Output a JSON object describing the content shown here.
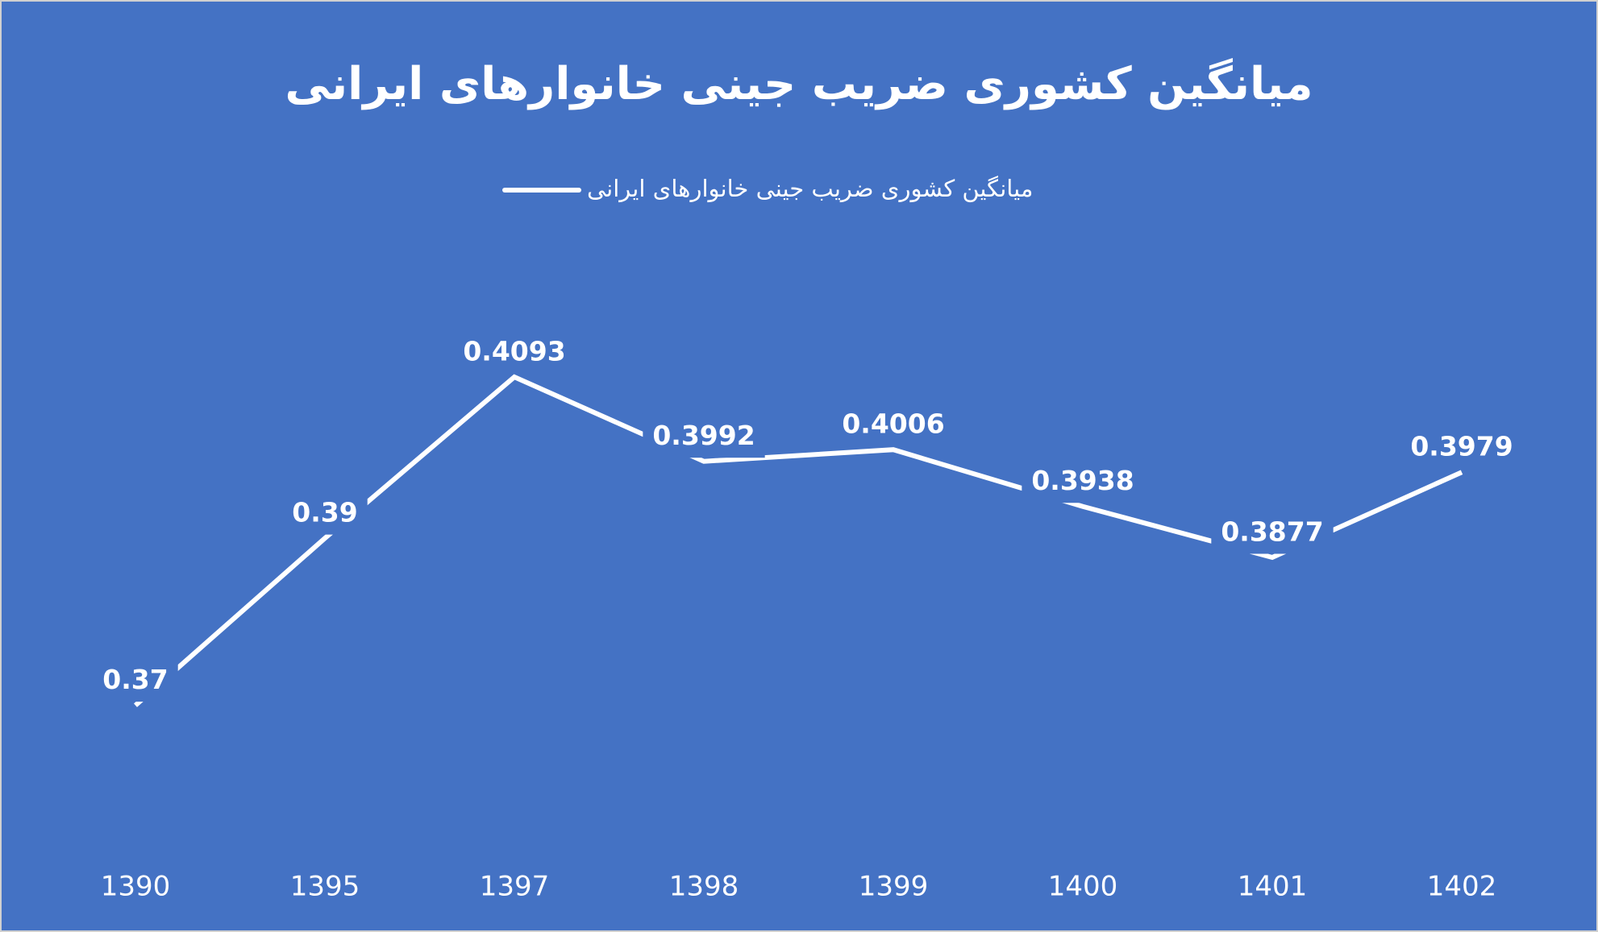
{
  "chart_data": {
    "type": "line",
    "title": "میانگین کشوری ضریب جینی خانوارهای ایرانی",
    "categories": [
      "1390",
      "1395",
      "1397",
      "1398",
      "1399",
      "1400",
      "1401",
      "1402"
    ],
    "series": [
      {
        "name": "میانگین کشوری ضریب جینی خانوارهای ایرانی",
        "color": "#ffffff",
        "values": [
          0.37,
          0.39,
          0.4093,
          0.3992,
          0.4006,
          0.3938,
          0.3877,
          0.3979
        ]
      }
    ],
    "ylim": [
      0.35,
      0.42
    ],
    "legend": "top",
    "background": "#4472c4"
  }
}
